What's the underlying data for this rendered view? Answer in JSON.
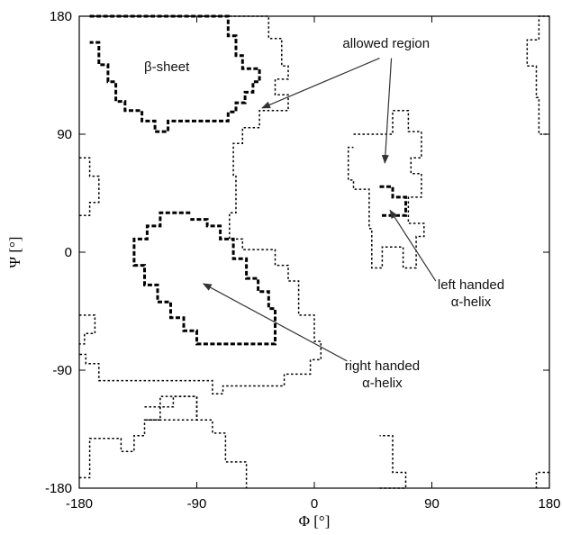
{
  "chart_data": {
    "type": "region-map",
    "xlabel": "Φ [°]",
    "ylabel": "Ψ [°]",
    "xlim": [
      -180,
      180
    ],
    "ylim": [
      -180,
      180
    ],
    "xticks": [
      -180,
      -90,
      0,
      90,
      180
    ],
    "yticks": [
      -180,
      -90,
      0,
      90,
      180
    ],
    "xtick_labels": [
      "-180",
      "-90",
      "0",
      "90",
      "180"
    ],
    "ytick_labels": [
      "-180",
      "-90",
      "0",
      "90",
      "180"
    ],
    "grid": false,
    "line_colors": {
      "regions": "#000000",
      "arrows": "#333333"
    },
    "annotations": [
      {
        "key": "allowed",
        "lines": [
          "allowed region"
        ]
      },
      {
        "key": "beta",
        "lines": [
          "β-sheet"
        ]
      },
      {
        "key": "left",
        "lines": [
          "left handed",
          "α-helix"
        ]
      },
      {
        "key": "right",
        "lines": [
          "right handed",
          "α-helix"
        ]
      }
    ],
    "regions": [
      {
        "name": "allowed-upper-left",
        "style": "dotted",
        "points": [
          [
            -172,
            180
          ],
          [
            -35,
            180
          ],
          [
            -35,
            163
          ],
          [
            -25,
            163
          ],
          [
            -25,
            142
          ],
          [
            -20,
            142
          ],
          [
            -20,
            132
          ],
          [
            -30,
            132
          ],
          [
            -30,
            120
          ],
          [
            -20,
            120
          ],
          [
            -20,
            108
          ],
          [
            -42,
            108
          ],
          [
            -42,
            95
          ],
          [
            -55,
            95
          ],
          [
            -55,
            83
          ],
          [
            -62,
            83
          ],
          [
            -62,
            58
          ],
          [
            -60,
            58
          ],
          [
            -60,
            30
          ],
          [
            -65,
            30
          ],
          [
            -65,
            10
          ],
          [
            -55,
            10
          ],
          [
            -55,
            2
          ],
          [
            -30,
            2
          ],
          [
            -30,
            -10
          ],
          [
            -20,
            -10
          ],
          [
            -20,
            -22
          ],
          [
            -12,
            -22
          ],
          [
            -12,
            -48
          ],
          [
            0,
            -48
          ],
          [
            0,
            -68
          ],
          [
            5,
            -68
          ],
          [
            5,
            -82
          ],
          [
            -3,
            -82
          ],
          [
            -3,
            -93
          ],
          [
            -23,
            -93
          ],
          [
            -23,
            -102
          ],
          [
            -70,
            -102
          ],
          [
            -70,
            -108
          ],
          [
            -78,
            -108
          ],
          [
            -78,
            -98
          ],
          [
            -165,
            -98
          ],
          [
            -165,
            -85
          ],
          [
            -175,
            -85
          ],
          [
            -175,
            -78
          ],
          [
            -180,
            -78
          ]
        ]
      },
      {
        "name": "allowed-left-edge-upper",
        "style": "dotted",
        "points": [
          [
            -180,
            72
          ],
          [
            -172,
            72
          ],
          [
            -172,
            58
          ],
          [
            -165,
            58
          ],
          [
            -165,
            38
          ],
          [
            -172,
            38
          ],
          [
            -172,
            28
          ],
          [
            -180,
            28
          ]
        ]
      },
      {
        "name": "allowed-left-edge-lower",
        "style": "dotted",
        "points": [
          [
            -180,
            -48
          ],
          [
            -168,
            -48
          ],
          [
            -168,
            -62
          ],
          [
            -176,
            -62
          ],
          [
            -176,
            -70
          ],
          [
            -180,
            -70
          ]
        ]
      },
      {
        "name": "allowed-upper-right",
        "style": "dotted",
        "points": [
          [
            180,
            180
          ],
          [
            172,
            180
          ],
          [
            172,
            162
          ],
          [
            163,
            162
          ],
          [
            163,
            142
          ],
          [
            170,
            142
          ],
          [
            170,
            118
          ],
          [
            172,
            118
          ],
          [
            172,
            90
          ],
          [
            180,
            90
          ]
        ]
      },
      {
        "name": "allowed-left-handed-region",
        "style": "dotted",
        "points": [
          [
            30,
            90
          ],
          [
            60,
            90
          ],
          [
            60,
            108
          ],
          [
            72,
            108
          ],
          [
            72,
            92
          ],
          [
            82,
            92
          ],
          [
            82,
            72
          ],
          [
            74,
            72
          ],
          [
            74,
            60
          ],
          [
            82,
            60
          ],
          [
            82,
            42
          ],
          [
            72,
            42
          ],
          [
            72,
            22
          ],
          [
            84,
            22
          ],
          [
            84,
            12
          ],
          [
            78,
            12
          ],
          [
            78,
            -12
          ],
          [
            68,
            -12
          ],
          [
            68,
            4
          ],
          [
            52,
            4
          ],
          [
            52,
            -12
          ],
          [
            44,
            -12
          ],
          [
            44,
            18
          ],
          [
            42,
            18
          ],
          [
            42,
            48
          ],
          [
            30,
            48
          ],
          [
            30,
            55
          ],
          [
            26,
            55
          ],
          [
            26,
            80
          ],
          [
            30,
            80
          ]
        ]
      },
      {
        "name": "allowed-lower-left",
        "style": "dotted",
        "points": [
          [
            -180,
            -172
          ],
          [
            -172,
            -172
          ],
          [
            -172,
            -142
          ],
          [
            -148,
            -142
          ],
          [
            -148,
            -152
          ],
          [
            -138,
            -152
          ],
          [
            -138,
            -140
          ],
          [
            -130,
            -140
          ],
          [
            -130,
            -128
          ],
          [
            -118,
            -128
          ],
          [
            -118,
            -118
          ],
          [
            -108,
            -118
          ],
          [
            -108,
            -110
          ],
          [
            -90,
            -110
          ],
          [
            -90,
            -128
          ],
          [
            -78,
            -128
          ],
          [
            -78,
            -138
          ],
          [
            -68,
            -138
          ],
          [
            -68,
            -160
          ],
          [
            -52,
            -160
          ],
          [
            -52,
            -180
          ]
        ]
      },
      {
        "name": "allowed-lower-left-bump",
        "style": "dotted",
        "points": [
          [
            -130,
            -118
          ],
          [
            -118,
            -118
          ],
          [
            -118,
            -110
          ],
          [
            -90,
            -110
          ],
          [
            -90,
            -128
          ],
          [
            -130,
            -128
          ]
        ]
      },
      {
        "name": "allowed-lower-middle",
        "style": "dotted",
        "points": [
          [
            50,
            -180
          ],
          [
            70,
            -180
          ],
          [
            70,
            -168
          ],
          [
            60,
            -168
          ],
          [
            60,
            -140
          ],
          [
            50,
            -140
          ]
        ]
      },
      {
        "name": "allowed-lower-right-corner",
        "style": "dotted",
        "points": [
          [
            180,
            -168
          ],
          [
            170,
            -168
          ],
          [
            170,
            -180
          ]
        ]
      },
      {
        "name": "beta-sheet-core",
        "style": "dashed",
        "points": [
          [
            -172,
            180
          ],
          [
            -66,
            180
          ],
          [
            -66,
            165
          ],
          [
            -60,
            165
          ],
          [
            -60,
            150
          ],
          [
            -55,
            150
          ],
          [
            -55,
            140
          ],
          [
            -42,
            140
          ],
          [
            -42,
            130
          ],
          [
            -47,
            130
          ],
          [
            -47,
            122
          ],
          [
            -53,
            122
          ],
          [
            -53,
            114
          ],
          [
            -60,
            114
          ],
          [
            -60,
            107
          ],
          [
            -66,
            107
          ],
          [
            -66,
            100
          ],
          [
            -112,
            100
          ],
          [
            -112,
            92
          ],
          [
            -122,
            92
          ],
          [
            -122,
            100
          ],
          [
            -132,
            100
          ],
          [
            -132,
            108
          ],
          [
            -145,
            108
          ],
          [
            -145,
            115
          ],
          [
            -152,
            115
          ],
          [
            -152,
            130
          ],
          [
            -158,
            130
          ],
          [
            -158,
            143
          ],
          [
            -165,
            143
          ],
          [
            -165,
            160
          ],
          [
            -172,
            160
          ]
        ]
      },
      {
        "name": "right-handed-alpha-helix-core",
        "style": "dashed",
        "points": [
          [
            -95,
            30
          ],
          [
            -118,
            30
          ],
          [
            -118,
            20
          ],
          [
            -128,
            20
          ],
          [
            -128,
            10
          ],
          [
            -138,
            10
          ],
          [
            -138,
            -10
          ],
          [
            -130,
            -10
          ],
          [
            -130,
            -25
          ],
          [
            -120,
            -25
          ],
          [
            -120,
            -38
          ],
          [
            -110,
            -38
          ],
          [
            -110,
            -50
          ],
          [
            -100,
            -50
          ],
          [
            -100,
            -60
          ],
          [
            -90,
            -60
          ],
          [
            -90,
            -70
          ],
          [
            -30,
            -70
          ],
          [
            -30,
            -43
          ],
          [
            -35,
            -43
          ],
          [
            -35,
            -30
          ],
          [
            -43,
            -30
          ],
          [
            -43,
            -20
          ],
          [
            -52,
            -20
          ],
          [
            -52,
            -5
          ],
          [
            -62,
            -5
          ],
          [
            -62,
            10
          ],
          [
            -72,
            10
          ],
          [
            -72,
            20
          ],
          [
            -82,
            20
          ],
          [
            -82,
            25
          ],
          [
            -95,
            25
          ]
        ]
      },
      {
        "name": "left-handed-alpha-helix-core",
        "style": "dashed",
        "points": [
          [
            50,
            50
          ],
          [
            60,
            50
          ],
          [
            60,
            42
          ],
          [
            70,
            42
          ],
          [
            70,
            28
          ],
          [
            50,
            28
          ]
        ]
      }
    ]
  }
}
